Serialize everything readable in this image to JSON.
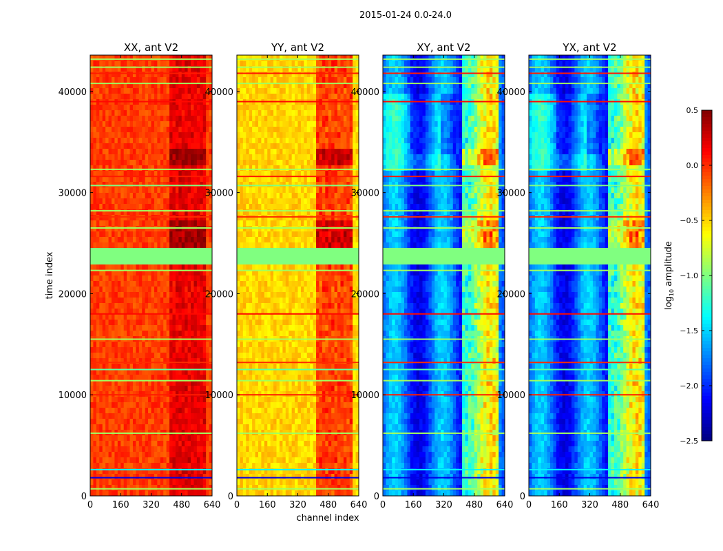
{
  "chart_data": {
    "type": "heatmap",
    "title": "2015-01-24 0.0-24.0",
    "xlabel": "channel index",
    "ylabel": "time index",
    "xlim": [
      0,
      640
    ],
    "ylim": [
      0,
      43600
    ],
    "xticks": [
      "0",
      "160",
      "320",
      "480",
      "640"
    ],
    "yticks": [
      "0",
      "10000",
      "20000",
      "30000",
      "40000"
    ],
    "colorbar": {
      "label_main": "log",
      "label_sub": "10",
      "label_rest": " amplitude",
      "vmin": -2.5,
      "vmax": 0.5,
      "colormap": "jet",
      "ticks": [
        "0.5",
        "0.0",
        "−0.5",
        "−1.0",
        "−1.5",
        "−2.0",
        "−2.5"
      ],
      "tick_values": [
        0.5,
        0.0,
        -0.5,
        -1.0,
        -1.5,
        -2.0,
        -2.5
      ]
    },
    "flagged_time_ranges": [
      [
        22800,
        24500
      ]
    ],
    "flag_value": -1.0,
    "rfi_channel_range": [
      410,
      600
    ],
    "panels": [
      {
        "title": "XX, ant V2",
        "base": -0.05,
        "rfi": 0.3,
        "burst_extra": 0.2
      },
      {
        "title": "YY, ant V2",
        "base": -0.5,
        "rfi": 0.55,
        "burst_extra": 0.3
      },
      {
        "title": "XY, ant V2",
        "base": -1.85,
        "rfi": 1.2,
        "burst_extra": 0.35
      },
      {
        "title": "YX, ant V2",
        "base": -1.85,
        "rfi": 1.2,
        "burst_extra": 0.35
      }
    ],
    "burst_time_ranges": [
      [
        24500,
        27000
      ],
      [
        32500,
        34500
      ]
    ],
    "lines": [
      {
        "t": 700,
        "v": -0.9
      },
      {
        "t": 1800,
        "v": -2.2
      },
      {
        "t": 2600,
        "v": -1.4
      },
      {
        "t": 6200,
        "v": -0.9
      },
      {
        "t": 10000,
        "v": 0.05
      },
      {
        "t": 11400,
        "v": -0.9
      },
      {
        "t": 12500,
        "v": -1.1
      },
      {
        "t": 13200,
        "v": 0.0
      },
      {
        "t": 15500,
        "v": -0.9
      },
      {
        "t": 18000,
        "v": 0.1
      },
      {
        "t": 22300,
        "v": -0.9
      },
      {
        "t": 26500,
        "v": -0.9
      },
      {
        "t": 27600,
        "v": 0.0
      },
      {
        "t": 28200,
        "v": -0.9
      },
      {
        "t": 30700,
        "v": -1.0
      },
      {
        "t": 31600,
        "v": 0.05
      },
      {
        "t": 32300,
        "v": -0.9
      },
      {
        "t": 39000,
        "v": 0.1
      },
      {
        "t": 40800,
        "v": -0.9
      },
      {
        "t": 41800,
        "v": 0.05
      },
      {
        "t": 42400,
        "v": -0.9
      },
      {
        "t": 43200,
        "v": -0.9
      }
    ]
  }
}
